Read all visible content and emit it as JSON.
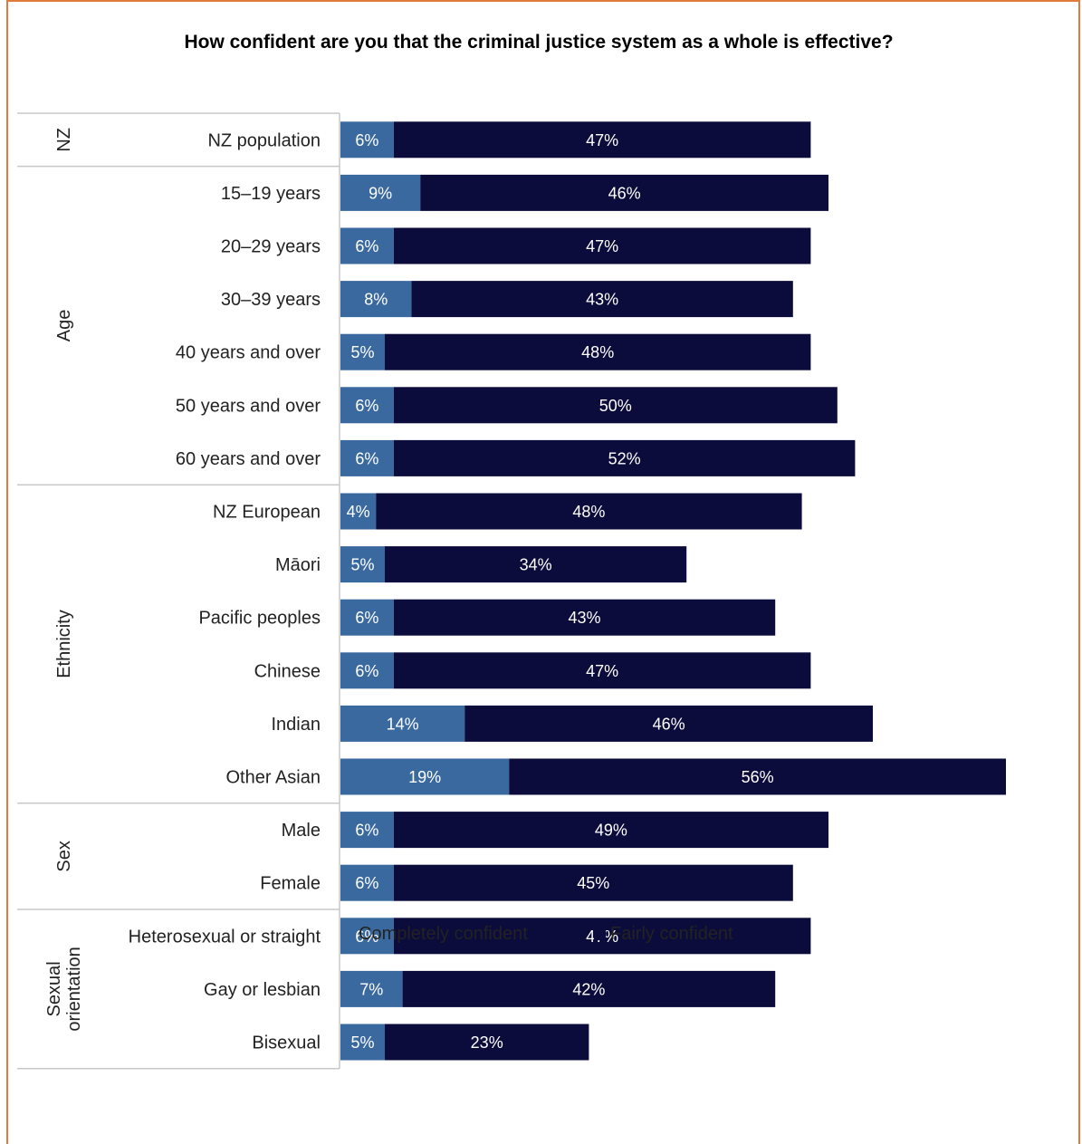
{
  "chart_data": {
    "type": "bar",
    "stacked": true,
    "orientation": "horizontal",
    "title": "How confident are you that the criminal justice system as a whole is effective?",
    "groups": [
      {
        "label": "NZ",
        "categories": [
          "NZ population"
        ]
      },
      {
        "label": "Age",
        "categories": [
          "15–19 years",
          "20–29 years",
          "30–39 years",
          "40 years and over",
          "50 years and over",
          "60 years and over"
        ]
      },
      {
        "label": "Ethnicity",
        "categories": [
          "NZ European",
          "Māori",
          "Pacific peoples",
          "Chinese",
          "Indian",
          "Other Asian"
        ]
      },
      {
        "label": "Sex",
        "categories": [
          "Male",
          "Female"
        ]
      },
      {
        "label": "Sexual orientation",
        "categories": [
          "Heterosexual or straight",
          "Gay or lesbian",
          "Bisexual"
        ]
      }
    ],
    "categories": [
      "NZ population",
      "15–19 years",
      "20–29 years",
      "30–39 years",
      "40 years and over",
      "50 years and over",
      "60 years and over",
      "NZ European",
      "Māori",
      "Pacific peoples",
      "Chinese",
      "Indian",
      "Other Asian",
      "Male",
      "Female",
      "Heterosexual or straight",
      "Gay or lesbian",
      "Bisexual"
    ],
    "series": [
      {
        "name": "Completely confident",
        "color": "#3a69a0",
        "values": [
          6,
          9,
          6,
          8,
          5,
          6,
          6,
          4,
          5,
          6,
          6,
          14,
          19,
          6,
          6,
          6,
          7,
          5
        ],
        "labels": [
          "6%",
          "9%",
          "6%",
          "8%",
          "5%",
          "6%",
          "6%",
          "4%",
          "5%",
          "6%",
          "6%",
          "14%",
          "19%",
          "6%",
          "6%",
          "6%",
          "7%",
          "5%"
        ]
      },
      {
        "name": "Fairly confident",
        "color": "#0c0c3c",
        "values": [
          47,
          46,
          47,
          43,
          48,
          50,
          52,
          48,
          34,
          43,
          47,
          46,
          56,
          49,
          45,
          47,
          42,
          23
        ],
        "labels": [
          "47%",
          "46%",
          "47%",
          "43%",
          "48%",
          "50%",
          "52%",
          "48%",
          "34%",
          "43%",
          "47%",
          "46%",
          "56%",
          "49%",
          "45%",
          "47%",
          "42%",
          "23%"
        ]
      }
    ],
    "legend_position": "bottom",
    "grid": false
  }
}
